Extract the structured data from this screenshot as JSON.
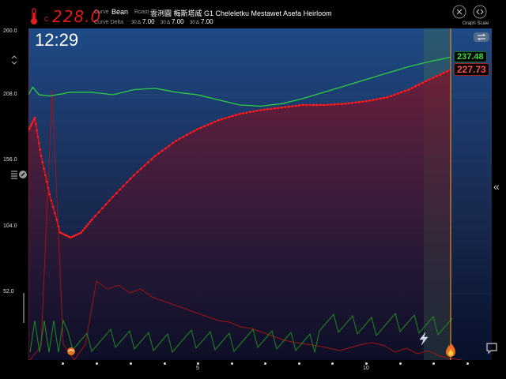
{
  "header": {
    "temperature": "228.0",
    "temperature_unit": "C",
    "curve_label": "Curve",
    "curve_value": "Bean",
    "roast_label": "Roast",
    "roast_value": "雲洌圓 梅斯塔威 G1 Cheleletku Mestawet Asefa Heirloom",
    "curve_delta_label": "Curve Delta",
    "deltas": [
      {
        "prefix": "30",
        "value": "7.00"
      },
      {
        "prefix": "30",
        "value": "7.00"
      },
      {
        "prefix": "30",
        "value": "7.00"
      }
    ],
    "graph_scale_label": "Graph Scale"
  },
  "clock": "12:29",
  "y_axis": {
    "ticks": [
      "260.0",
      "208.0",
      "156.0",
      "104.0",
      "52.0"
    ]
  },
  "x_axis": {
    "labels": [
      "5",
      "10"
    ]
  },
  "readouts": {
    "green": "237.48",
    "red": "227.73"
  },
  "colors": {
    "bean_curve": "#e0101a",
    "env_curve": "#2ecc40",
    "ror_bean": "#a01414",
    "ror_env": "#1f8a1f",
    "marker_line": "#e08a20"
  },
  "icons": [
    "thermometer-icon",
    "collapse-icon",
    "expand-icon",
    "layers-icon",
    "gear-icon",
    "swap-icon",
    "chevron-left-icon",
    "flame-icon",
    "lightning-icon",
    "turning-point-icon",
    "chat-icon"
  ],
  "chart_data": {
    "type": "line",
    "ylim": [
      0,
      260
    ],
    "x_range_minutes": [
      0,
      13
    ],
    "series": [
      {
        "values": [
          [
            0,
            208
          ],
          [
            0.2,
            214
          ],
          [
            0.5,
            208
          ],
          [
            1,
            207
          ],
          [
            2,
            210
          ],
          [
            3,
            210
          ],
          [
            4,
            208
          ],
          [
            5,
            212
          ],
          [
            6,
            213
          ],
          [
            7,
            210
          ],
          [
            8,
            208
          ],
          [
            9,
            204
          ],
          [
            10,
            200
          ],
          [
            11,
            199
          ],
          [
            12,
            201
          ],
          [
            13,
            205
          ],
          [
            14,
            210
          ],
          [
            15,
            215
          ],
          [
            16,
            220
          ],
          [
            17,
            225
          ],
          [
            18,
            230
          ],
          [
            19,
            234
          ],
          [
            20,
            237.48
          ]
        ]
      },
      {
        "values": [
          [
            0,
            180
          ],
          [
            0.3,
            190
          ],
          [
            0.6,
            160
          ],
          [
            1,
            130
          ],
          [
            1.5,
            100
          ],
          [
            2,
            96
          ],
          [
            2.5,
            100
          ],
          [
            3,
            110
          ],
          [
            4,
            128
          ],
          [
            5,
            145
          ],
          [
            6,
            160
          ],
          [
            7,
            172
          ],
          [
            8,
            181
          ],
          [
            9,
            188
          ],
          [
            10,
            193
          ],
          [
            11,
            196
          ],
          [
            12,
            198
          ],
          [
            13,
            200
          ],
          [
            14,
            200
          ],
          [
            15,
            201
          ],
          [
            16,
            203
          ],
          [
            17,
            206
          ],
          [
            18,
            212
          ],
          [
            19,
            220
          ],
          [
            20,
            227.73
          ]
        ]
      }
    ]
  }
}
